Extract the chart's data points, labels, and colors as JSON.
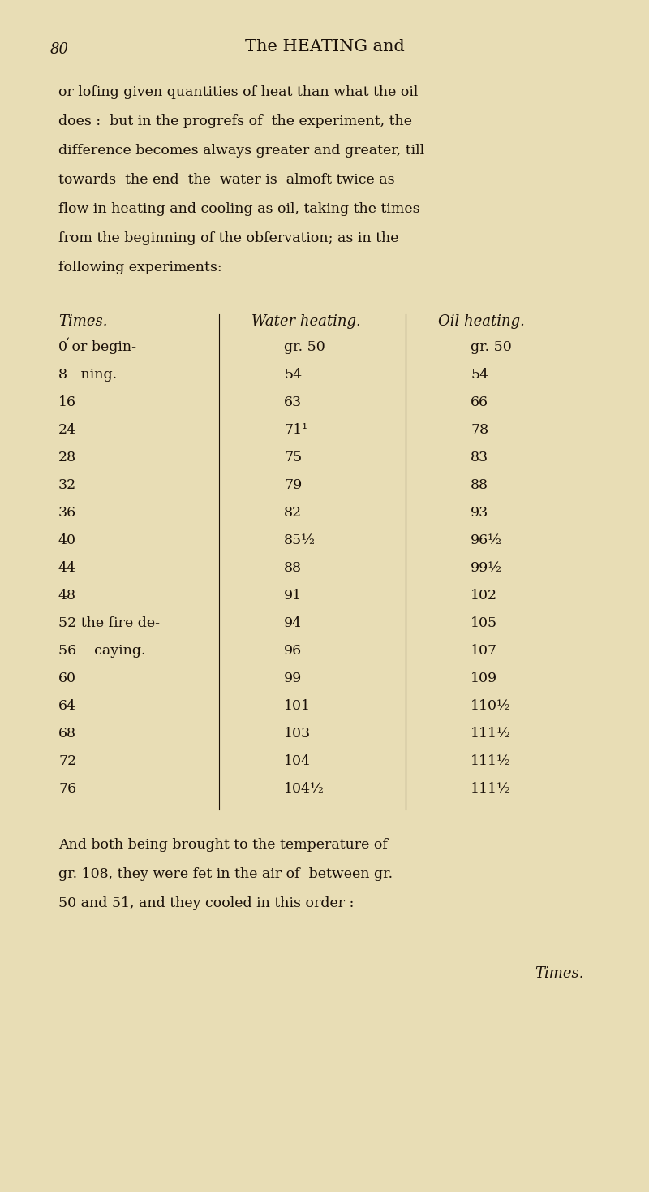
{
  "bg_color": "#e8ddb5",
  "page_number": "80",
  "page_header": "The HEATING and",
  "body_text": [
    "or lofing given quantities of heat than what the oil",
    "does :  but in the progrefs of  the experiment, the",
    "difference becomes always greater and greater, till",
    "towards  the end  the  water is  almoft twice as",
    "flow in heating and cooling as oil, taking the times",
    "from the beginning of the obfervation; as in the",
    "following experiments:"
  ],
  "col1_header": "Times.",
  "col2_header": "Water heating.",
  "col3_header": "Oil heating.",
  "col1_tick": "‘",
  "table_rows": [
    [
      "0 or begin-",
      "gr. 50",
      "gr. 50"
    ],
    [
      "8   ning.",
      "54",
      "54"
    ],
    [
      "16",
      "63",
      "66"
    ],
    [
      "24",
      "71¹",
      "78"
    ],
    [
      "28",
      "75",
      "83"
    ],
    [
      "32",
      "79",
      "88"
    ],
    [
      "36",
      "82",
      "93"
    ],
    [
      "40",
      "85½",
      "96½"
    ],
    [
      "44",
      "88",
      "99½"
    ],
    [
      "48",
      "91",
      "102"
    ],
    [
      "52 the fire de-",
      "94",
      "105"
    ],
    [
      "56    caying.",
      "96",
      "107"
    ],
    [
      "60",
      "99",
      "109"
    ],
    [
      "64",
      "101",
      "110½"
    ],
    [
      "68",
      "103",
      "111½"
    ],
    [
      "72",
      "104",
      "111½"
    ],
    [
      "76",
      "104½",
      "111½"
    ]
  ],
  "footer_text": [
    "And both being brought to the temperature of",
    "gr. 108, they were fet in the air of  between gr.",
    "50 and 51, and they cooled in this order :"
  ],
  "last_word": "Times.",
  "font_color": "#1a1008",
  "text_font": "serif",
  "title_font": "serif"
}
